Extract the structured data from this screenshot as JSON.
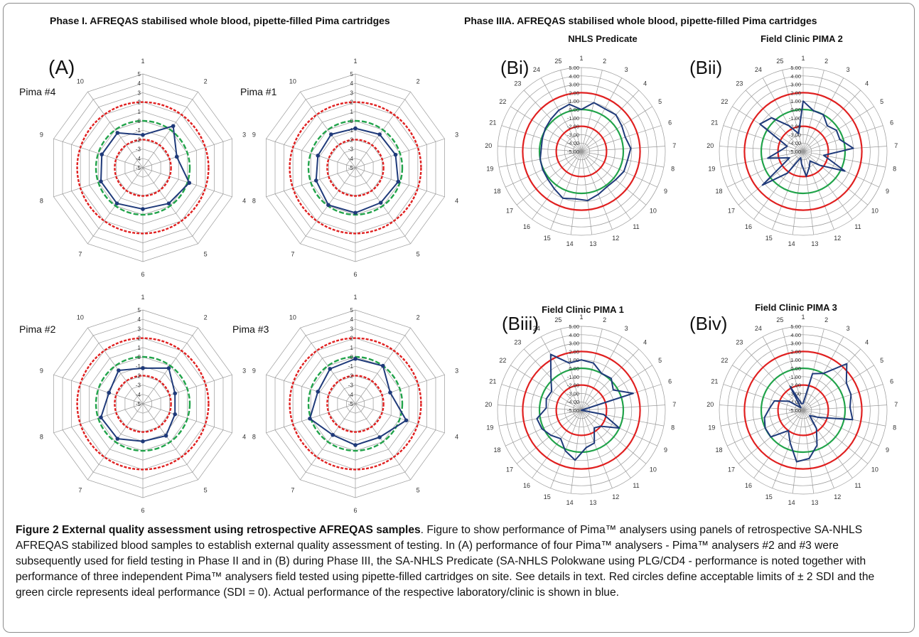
{
  "phase_titles": {
    "left": "Phase I.  AFREQAS stabilised whole blood, pipette-filled Pima cartridges",
    "right": "Phase IIIA.  AFREQAS stabilised whole blood, pipette-filled Pima cartridges"
  },
  "caption": {
    "title": "Figure 2 External quality assessment using retrospective AFREQAS samples",
    "text": ". Figure to show performance of Pima™ analysers using panels of retrospective SA-NHLS AFREQAS stabilized blood samples to establish external quality assessment of testing. In (A) performance of four Pima™ analysers - Pima™ analysers #2 and #3 were subsequently used for field testing in Phase II and in (B) during Phase III, the SA-NHLS Predicate (SA-NHLS Polokwane using PLG/CD4 - performance is noted together with performance of three independent Pima™ analysers field tested using pipette-filled cartridges on site. See details in text. Red circles define acceptable limits of ± 2 SDI and the green circle represents ideal performance (SDI = 0). Actual performance of the respective laboratory/clinic is shown in blue."
  },
  "colors": {
    "limit": "#e02020",
    "ideal": "#21a34a",
    "performance": "#1f3a7a",
    "grid": "#9a9a9a"
  },
  "chart_data": [
    {
      "type": "radar",
      "panel_label": "(A)",
      "label": "Pima #4",
      "categories": [
        "1",
        "2",
        "3",
        "4",
        "5",
        "6",
        "7",
        "8",
        "9",
        "10"
      ],
      "range": [
        -5,
        5
      ],
      "tick_labels": [
        "-5",
        "-4",
        "-3",
        "-2",
        "-1",
        "0",
        "1",
        "2",
        "3",
        "4",
        "5"
      ],
      "reference_circles": [
        {
          "value": 2,
          "color": "red",
          "style": "dashed"
        },
        {
          "value": 0,
          "color": "green",
          "style": "dashed"
        },
        {
          "value": -2,
          "color": "red",
          "style": "dashed"
        }
      ],
      "values": [
        -1.5,
        0.5,
        -1.2,
        0.2,
        -0.3,
        -0.6,
        -0.3,
        -0.3,
        -0.4,
        -0.4
      ]
    },
    {
      "type": "radar",
      "label": "Pima #1",
      "categories": [
        "1",
        "2",
        "3",
        "4",
        "5",
        "6",
        "7",
        "8",
        "9",
        "10"
      ],
      "range": [
        -5,
        5
      ],
      "tick_labels": [
        "-5",
        "-4",
        "-3",
        "-2",
        "-1",
        "0",
        "1",
        "2",
        "3",
        "4",
        "5"
      ],
      "reference_circles": [
        {
          "value": 2,
          "color": "red",
          "style": "dashed"
        },
        {
          "value": 0,
          "color": "green",
          "style": "dashed"
        },
        {
          "value": -2,
          "color": "red",
          "style": "dashed"
        }
      ],
      "values": [
        -0.8,
        -0.6,
        -0.5,
        -0.2,
        -0.4,
        -0.2,
        -0.1,
        -0.6,
        -0.8,
        -0.6
      ]
    },
    {
      "type": "radar",
      "label": "Pima #2",
      "categories": [
        "1",
        "2",
        "3",
        "4",
        "5",
        "6",
        "7",
        "8",
        "9",
        "10"
      ],
      "range": [
        -5,
        5
      ],
      "tick_labels": [
        "-5",
        "-4",
        "-3",
        "-2",
        "-1",
        "0",
        "1",
        "2",
        "3",
        "4",
        "5"
      ],
      "reference_circles": [
        {
          "value": 2,
          "color": "red",
          "style": "dashed"
        },
        {
          "value": 0,
          "color": "green",
          "style": "dashed"
        },
        {
          "value": -2,
          "color": "red",
          "style": "dashed"
        }
      ],
      "values": [
        -1.2,
        -0.3,
        -1.4,
        -1.4,
        -0.8,
        -1.0,
        -0.4,
        -0.3,
        -1.2,
        -0.6
      ]
    },
    {
      "type": "radar",
      "label": "Pima #3",
      "categories": [
        "1",
        "2",
        "3",
        "4",
        "5",
        "6",
        "7",
        "8",
        "9",
        "10"
      ],
      "range": [
        -5,
        5
      ],
      "tick_labels": [
        "-5",
        "-4",
        "-3",
        "-2",
        "-1",
        "0",
        "1",
        "2",
        "3",
        "4",
        "5"
      ],
      "reference_circles": [
        {
          "value": 2,
          "color": "red",
          "style": "dashed"
        },
        {
          "value": 0,
          "color": "green",
          "style": "dashed"
        },
        {
          "value": -2,
          "color": "red",
          "style": "dashed"
        }
      ],
      "values": [
        -0.2,
        0.0,
        -1.1,
        0.7,
        -0.6,
        -0.6,
        -0.9,
        0.1,
        -0.8,
        -0.4
      ]
    },
    {
      "type": "radar",
      "panel_label": "(Bi)",
      "title": "NHLS Predicate",
      "categories": [
        "1",
        "2",
        "3",
        "4",
        "5",
        "6",
        "7",
        "8",
        "9",
        "10",
        "11",
        "12",
        "13",
        "14",
        "15",
        "16",
        "17",
        "18",
        "19",
        "20",
        "21",
        "22",
        "23",
        "24",
        "25"
      ],
      "range": [
        -5,
        5
      ],
      "tick_labels": [
        "-5.00",
        "-4.00",
        "-3.00",
        "-2.00",
        "-1.00",
        "0.00",
        "1.00",
        "2.00",
        "3.00",
        "4.00",
        "5.00"
      ],
      "reference_circles": [
        {
          "value": 2,
          "color": "red"
        },
        {
          "value": 0,
          "color": "green"
        },
        {
          "value": -2,
          "color": "red"
        }
      ],
      "values": [
        0.0,
        1.0,
        0.8,
        1.0,
        0.7,
        0.5,
        0.9,
        0.6,
        0.6,
        0.3,
        0.2,
        0.5,
        0.9,
        0.7,
        1.0,
        0.5,
        0.2,
        0.1,
        0.0,
        -0.2,
        -0.1,
        0.1,
        0.3,
        0.6,
        0.8
      ]
    },
    {
      "type": "radar",
      "panel_label": "(Bii)",
      "title": "Field Clinic PIMA 2",
      "categories": [
        "1",
        "2",
        "3",
        "4",
        "5",
        "6",
        "7",
        "8",
        "9",
        "10",
        "11",
        "12",
        "13",
        "14",
        "15",
        "16",
        "17",
        "18",
        "19",
        "20",
        "21",
        "22",
        "23",
        "24",
        "25"
      ],
      "range": [
        -5,
        5
      ],
      "tick_labels": [
        "-5.00",
        "-4.00",
        "-3.00",
        "-2.00",
        "-1.00",
        "0.00",
        "1.00",
        "2.00",
        "3.00",
        "4.00",
        "5.00"
      ],
      "reference_circles": [
        {
          "value": 2,
          "color": "red"
        },
        {
          "value": 0,
          "color": "green"
        },
        {
          "value": -2,
          "color": "red"
        }
      ],
      "values": [
        1.0,
        0.0,
        0.0,
        -0.8,
        -0.3,
        -0.4,
        1.0,
        -2.5,
        0.5,
        -2.4,
        -3.6,
        -3.0,
        -2.0,
        -3.5,
        -4.2,
        -1.8,
        1.3,
        -3.2,
        -0.7,
        -2.4,
        -3.0,
        1.1,
        0.5,
        -1.5,
        -2.8
      ]
    },
    {
      "type": "radar",
      "panel_label": "(Biii)",
      "title": "Field Clinic PIMA 1",
      "categories": [
        "1",
        "2",
        "3",
        "4",
        "5",
        "6",
        "7",
        "8",
        "9",
        "10",
        "11",
        "12",
        "13",
        "14",
        "15",
        "16",
        "17",
        "18",
        "19",
        "20",
        "21",
        "22",
        "23",
        "24",
        "25"
      ],
      "range": [
        -5,
        5
      ],
      "tick_labels": [
        "-5.00",
        "-4.00",
        "-3.00",
        "-2.00",
        "-1.00",
        "0.00",
        "1.00",
        "2.00",
        "3.00",
        "4.00",
        "5.00"
      ],
      "reference_circles": [
        {
          "value": 2,
          "color": "red"
        },
        {
          "value": 0,
          "color": "green"
        },
        {
          "value": -2,
          "color": "red"
        }
      ],
      "values": [
        1.0,
        0.8,
        0.0,
        0.2,
        -0.5,
        1.5,
        -5.0,
        -2.3,
        0.0,
        -2.0,
        -2.4,
        -0.8,
        -0.5,
        1.0,
        0.2,
        -0.8,
        -0.3,
        0.2,
        0.4,
        -0.8,
        -0.6,
        -0.8,
        0.3,
        2.6,
        0.8
      ]
    },
    {
      "type": "radar",
      "panel_label": "(Biv)",
      "title": "Field Clinic PIMA 3",
      "categories": [
        "1",
        "2",
        "3",
        "4",
        "5",
        "6",
        "7",
        "8",
        "9",
        "10",
        "11",
        "12",
        "13",
        "14",
        "15",
        "16",
        "17",
        "18",
        "19",
        "20",
        "21",
        "22",
        "23",
        "24",
        "25"
      ],
      "range": [
        -5,
        5
      ],
      "tick_labels": [
        "-5.00",
        "-4.00",
        "-3.00",
        "-2.00",
        "-1.00",
        "0.00",
        "1.00",
        "2.00",
        "3.00",
        "4.00",
        "5.00"
      ],
      "reference_circles": [
        {
          "value": 2,
          "color": "red"
        },
        {
          "value": 0,
          "color": "green"
        },
        {
          "value": -2,
          "color": "red"
        }
      ],
      "values": [
        -4.2,
        -0.5,
        0.0,
        2.6,
        1.1,
        1.0,
        0.6,
        1.0,
        -3.0,
        -4.0,
        -2.3,
        -0.5,
        0.8,
        1.2,
        -0.8,
        -2.0,
        0.0,
        0.0,
        -0.3,
        -1.0,
        -1.4,
        -3.0,
        -4.6,
        -1.8,
        -4.2
      ]
    }
  ]
}
